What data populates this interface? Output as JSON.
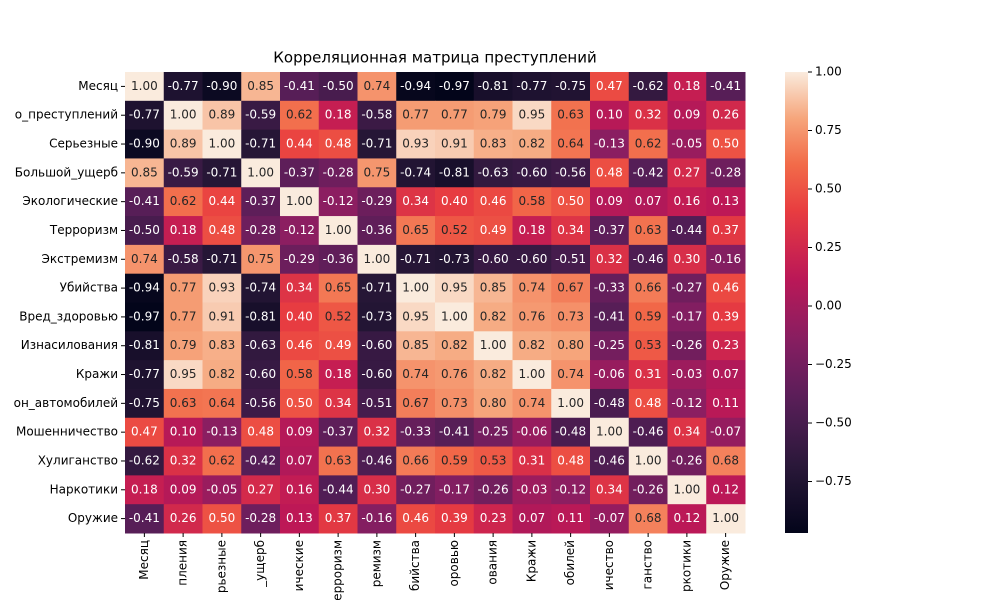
{
  "chart_data": {
    "type": "heatmap",
    "title": "Корреляционная матрица преступлений",
    "colormap": "rocket",
    "x_categories": [
      "Месяц",
      "пления",
      "рьезные",
      "_ущерб",
      "ические",
      "ерроризм",
      "ремизм",
      "бийства",
      "оровью",
      "ования",
      "Кражи",
      "обилей",
      "ичество",
      "ганство",
      "ркотики",
      "Оружие"
    ],
    "y_categories": [
      "Месяц",
      "о_преступлений",
      "Серьезные",
      "Большой_ущерб",
      "Экологические",
      "Терроризм",
      "Экстремизм",
      "Убийства",
      "Вред_здоровью",
      "Изнасилования",
      "Кражи",
      "он_автомобилей",
      "Мошенничество",
      "Хулиганство",
      "Наркотики",
      "Оружие"
    ],
    "values": [
      [
        1.0,
        -0.77,
        -0.9,
        0.85,
        -0.41,
        -0.5,
        0.74,
        -0.94,
        -0.97,
        -0.81,
        -0.77,
        -0.75,
        0.47,
        -0.62,
        0.18,
        -0.41
      ],
      [
        -0.77,
        1.0,
        0.89,
        -0.59,
        0.62,
        0.18,
        -0.58,
        0.77,
        0.77,
        0.79,
        0.95,
        0.63,
        0.1,
        0.32,
        0.09,
        0.26
      ],
      [
        -0.9,
        0.89,
        1.0,
        -0.71,
        0.44,
        0.48,
        -0.71,
        0.93,
        0.91,
        0.83,
        0.82,
        0.64,
        -0.13,
        0.62,
        -0.05,
        0.5
      ],
      [
        0.85,
        -0.59,
        -0.71,
        1.0,
        -0.37,
        -0.28,
        0.75,
        -0.74,
        -0.81,
        -0.63,
        -0.6,
        -0.56,
        0.48,
        -0.42,
        0.27,
        -0.28
      ],
      [
        -0.41,
        0.62,
        0.44,
        -0.37,
        1.0,
        -0.12,
        -0.29,
        0.34,
        0.4,
        0.46,
        0.58,
        0.5,
        0.09,
        0.07,
        0.16,
        0.13
      ],
      [
        -0.5,
        0.18,
        0.48,
        -0.28,
        -0.12,
        1.0,
        -0.36,
        0.65,
        0.52,
        0.49,
        0.18,
        0.34,
        -0.37,
        0.63,
        -0.44,
        0.37
      ],
      [
        0.74,
        -0.58,
        -0.71,
        0.75,
        -0.29,
        -0.36,
        1.0,
        -0.71,
        -0.73,
        -0.6,
        -0.6,
        -0.51,
        0.32,
        -0.46,
        0.3,
        -0.16
      ],
      [
        -0.94,
        0.77,
        0.93,
        -0.74,
        0.34,
        0.65,
        -0.71,
        1.0,
        0.95,
        0.85,
        0.74,
        0.67,
        -0.33,
        0.66,
        -0.27,
        0.46
      ],
      [
        -0.97,
        0.77,
        0.91,
        -0.81,
        0.4,
        0.52,
        -0.73,
        0.95,
        1.0,
        0.82,
        0.76,
        0.73,
        -0.41,
        0.59,
        -0.17,
        0.39
      ],
      [
        -0.81,
        0.79,
        0.83,
        -0.63,
        0.46,
        0.49,
        -0.6,
        0.85,
        0.82,
        1.0,
        0.82,
        0.8,
        -0.25,
        0.53,
        -0.26,
        0.23
      ],
      [
        -0.77,
        0.95,
        0.82,
        -0.6,
        0.58,
        0.18,
        -0.6,
        0.74,
        0.76,
        0.82,
        1.0,
        0.74,
        -0.06,
        0.31,
        -0.03,
        0.07
      ],
      [
        -0.75,
        0.63,
        0.64,
        -0.56,
        0.5,
        0.34,
        -0.51,
        0.67,
        0.73,
        0.8,
        0.74,
        1.0,
        -0.48,
        0.48,
        -0.12,
        0.11
      ],
      [
        0.47,
        0.1,
        -0.13,
        0.48,
        0.09,
        -0.37,
        0.32,
        -0.33,
        -0.41,
        -0.25,
        -0.06,
        -0.48,
        1.0,
        -0.46,
        0.34,
        -0.07
      ],
      [
        -0.62,
        0.32,
        0.62,
        -0.42,
        0.07,
        0.63,
        -0.46,
        0.66,
        0.59,
        0.53,
        0.31,
        0.48,
        -0.46,
        1.0,
        -0.26,
        0.68
      ],
      [
        0.18,
        0.09,
        -0.05,
        0.27,
        0.16,
        -0.44,
        0.3,
        -0.27,
        -0.17,
        -0.26,
        -0.03,
        -0.12,
        0.34,
        -0.26,
        1.0,
        0.12
      ],
      [
        -0.41,
        0.26,
        0.5,
        -0.28,
        0.13,
        0.37,
        -0.16,
        0.46,
        0.39,
        0.23,
        0.07,
        0.11,
        -0.07,
        0.68,
        0.12,
        1.0
      ]
    ],
    "value_labels": [
      [
        "1.00",
        "-0.77",
        "-0.90",
        "0.85",
        "-0.41",
        "-0.50",
        "0.74",
        "-0.94",
        "-0.97",
        "-0.81",
        "-0.77",
        "-0.75",
        "0.47",
        "-0.62",
        "0.18",
        "-0.41"
      ],
      [
        "-0.77",
        "1.00",
        "0.89",
        "-0.59",
        "0.62",
        "0.18",
        "-0.58",
        "0.77",
        "0.77",
        "0.79",
        "0.95",
        "0.63",
        "0.10",
        "0.32",
        "0.09",
        "0.26"
      ],
      [
        "-0.90",
        "0.89",
        "1.00",
        "-0.71",
        "0.44",
        "0.48",
        "-0.71",
        "0.93",
        "0.91",
        "0.83",
        "0.82",
        "0.64",
        "-0.13",
        "0.62",
        "-0.05",
        "0.50"
      ],
      [
        "0.85",
        "-0.59",
        "-0.71",
        "1.00",
        "-0.37",
        "-0.28",
        "0.75",
        "-0.74",
        "-0.81",
        "-0.63",
        "-0.60",
        "-0.56",
        "0.48",
        "-0.42",
        "0.27",
        "-0.28"
      ],
      [
        "-0.41",
        "0.62",
        "0.44",
        "-0.37",
        "1.00",
        "-0.12",
        "-0.29",
        "0.34",
        "0.40",
        "0.46",
        "0.58",
        "0.50",
        "0.09",
        "0.07",
        "0.16",
        "0.13"
      ],
      [
        "-0.50",
        "0.18",
        "0.48",
        "-0.28",
        "-0.12",
        "1.00",
        "-0.36",
        "0.65",
        "0.52",
        "0.49",
        "0.18",
        "0.34",
        "-0.37",
        "0.63",
        "-0.44",
        "0.37"
      ],
      [
        "0.74",
        "-0.58",
        "-0.71",
        "0.75",
        "-0.29",
        "-0.36",
        "1.00",
        "-0.71",
        "-0.73",
        "-0.60",
        "-0.60",
        "-0.51",
        "0.32",
        "-0.46",
        "0.30",
        "-0.16"
      ],
      [
        "-0.94",
        "0.77",
        "0.93",
        "-0.74",
        "0.34",
        "0.65",
        "-0.71",
        "1.00",
        "0.95",
        "0.85",
        "0.74",
        "0.67",
        "-0.33",
        "0.66",
        "-0.27",
        "0.46"
      ],
      [
        "-0.97",
        "0.77",
        "0.91",
        "-0.81",
        "0.40",
        "0.52",
        "-0.73",
        "0.95",
        "1.00",
        "0.82",
        "0.76",
        "0.73",
        "-0.41",
        "0.59",
        "-0.17",
        "0.39"
      ],
      [
        "-0.81",
        "0.79",
        "0.83",
        "-0.63",
        "0.46",
        "0.49",
        "-0.60",
        "0.85",
        "0.82",
        "1.00",
        "0.82",
        "0.80",
        "-0.25",
        "0.53",
        "-0.26",
        "0.23"
      ],
      [
        "-0.77",
        "0.95",
        "0.82",
        "-0.60",
        "0.58",
        "0.18",
        "-0.60",
        "0.74",
        "0.76",
        "0.82",
        "1.00",
        "0.74",
        "-0.06",
        "0.31",
        "-0.03",
        "0.07"
      ],
      [
        "-0.75",
        "0.63",
        "0.64",
        "-0.56",
        "0.50",
        "0.34",
        "-0.51",
        "0.67",
        "0.73",
        "0.80",
        "0.74",
        "1.00",
        "-0.48",
        "0.48",
        "-0.12",
        "0.11"
      ],
      [
        "0.47",
        "0.10",
        "-0.13",
        "0.48",
        "0.09",
        "-0.37",
        "0.32",
        "-0.33",
        "-0.41",
        "-0.25",
        "-0.06",
        "-0.48",
        "1.00",
        "-0.46",
        "0.34",
        "-0.07"
      ],
      [
        "-0.62",
        "0.32",
        "0.62",
        "-0.42",
        "0.07",
        "0.63",
        "-0.46",
        "0.66",
        "0.59",
        "0.53",
        "0.31",
        "0.48",
        "-0.46",
        "1.00",
        "-0.26",
        "0.68"
      ],
      [
        "0.18",
        "0.09",
        "-0.05",
        "0.27",
        "0.16",
        "-0.44",
        "0.30",
        "-0.27",
        "-0.17",
        "-0.26",
        "-0.03",
        "-0.12",
        "0.34",
        "-0.26",
        "1.00",
        "0.12"
      ],
      [
        "-0.41",
        "0.26",
        "0.50",
        "-0.28",
        "0.13",
        "0.37",
        "-0.16",
        "0.46",
        "0.39",
        "0.23",
        "0.07",
        "0.11",
        "-0.07",
        "0.68",
        "0.12",
        "1.00"
      ]
    ],
    "zlim": [
      -0.97,
      1.0
    ],
    "zticks": [
      {
        "value": 1.0,
        "label": "1.00"
      },
      {
        "value": 0.75,
        "label": "0.75"
      },
      {
        "value": 0.5,
        "label": "0.50"
      },
      {
        "value": 0.25,
        "label": "0.25"
      },
      {
        "value": 0.0,
        "label": "0.00"
      },
      {
        "value": -0.25,
        "label": "−0.25"
      },
      {
        "value": -0.5,
        "label": "−0.50"
      },
      {
        "value": -0.75,
        "label": "−0.75"
      }
    ]
  }
}
